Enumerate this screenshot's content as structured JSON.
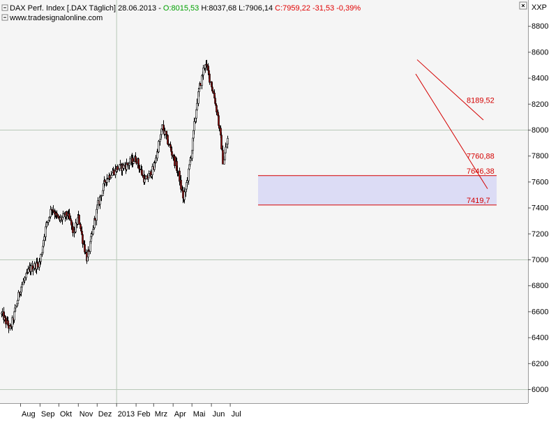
{
  "header": {
    "instrument": "DAX Perf. Index [.DAX  Täglich] 28.06.2013 - ",
    "open": "O:8015,53",
    "high": " H:8037,68",
    "low": " L:7906,14",
    "close": " C:7959,22 -31,53 -0,39%",
    "website": "www.tradesignalonline.com",
    "axis_unit": "XXP"
  },
  "colors": {
    "open": "#00a000",
    "close": "#e00000",
    "up_candle": "#ffffff",
    "down_candle": "#8b0000",
    "line": "#d40000",
    "zone": "#dcdcf5"
  },
  "chart_data": {
    "type": "candlestick",
    "title": "DAX Perf. Index [.DAX  Täglich] 28.06.2013",
    "ylim": [
      5800,
      8900
    ],
    "y_ticks": [
      6000,
      6200,
      6400,
      6600,
      6800,
      7000,
      7200,
      7400,
      7600,
      7800,
      8000,
      8200,
      8400,
      8600,
      8800
    ],
    "x_ticks": [
      "Aug",
      "Sep",
      "Okt",
      "Nov",
      "Dez",
      "2013",
      "Feb",
      "Mrz",
      "Apr",
      "Mai",
      "Jun",
      "Jul"
    ],
    "grid": "partial",
    "monthly_path": [
      {
        "date": "2012-07-02",
        "close": 6580
      },
      {
        "date": "2012-07-16",
        "close": 6460
      },
      {
        "date": "2012-08-01",
        "close": 6780
      },
      {
        "date": "2012-08-15",
        "close": 6920
      },
      {
        "date": "2012-09-01",
        "close": 6980
      },
      {
        "date": "2012-09-10",
        "close": 7250
      },
      {
        "date": "2012-09-20",
        "close": 7400
      },
      {
        "date": "2012-10-01",
        "close": 7300
      },
      {
        "date": "2012-10-15",
        "close": 7350
      },
      {
        "date": "2012-10-25",
        "close": 7200
      },
      {
        "date": "2012-11-01",
        "close": 7330
      },
      {
        "date": "2012-11-15",
        "close": 6990
      },
      {
        "date": "2012-12-01",
        "close": 7400
      },
      {
        "date": "2012-12-15",
        "close": 7620
      },
      {
        "date": "2013-01-01",
        "close": 7700
      },
      {
        "date": "2013-01-15",
        "close": 7720
      },
      {
        "date": "2013-02-01",
        "close": 7780
      },
      {
        "date": "2013-02-15",
        "close": 7600
      },
      {
        "date": "2013-03-01",
        "close": 7700
      },
      {
        "date": "2013-03-15",
        "close": 8020
      },
      {
        "date": "2013-04-01",
        "close": 7800
      },
      {
        "date": "2013-04-10",
        "close": 7650
      },
      {
        "date": "2013-04-18",
        "close": 7450
      },
      {
        "date": "2013-05-01",
        "close": 7850
      },
      {
        "date": "2013-05-10",
        "close": 8250
      },
      {
        "date": "2013-05-22",
        "close": 8520
      },
      {
        "date": "2013-06-01",
        "close": 8350
      },
      {
        "date": "2013-06-10",
        "close": 8150
      },
      {
        "date": "2013-06-20",
        "close": 7750
      },
      {
        "date": "2013-06-28",
        "close": 7959
      }
    ],
    "levels": [
      {
        "label": "8189,52",
        "value": 8189.52
      },
      {
        "label": "7760,88",
        "value": 7760.88
      },
      {
        "label": "7646,38",
        "value": 7646.38
      },
      {
        "label": "7419,7",
        "value": 7419.7
      }
    ],
    "support_zone": [
      7419.7,
      7646.38
    ]
  }
}
